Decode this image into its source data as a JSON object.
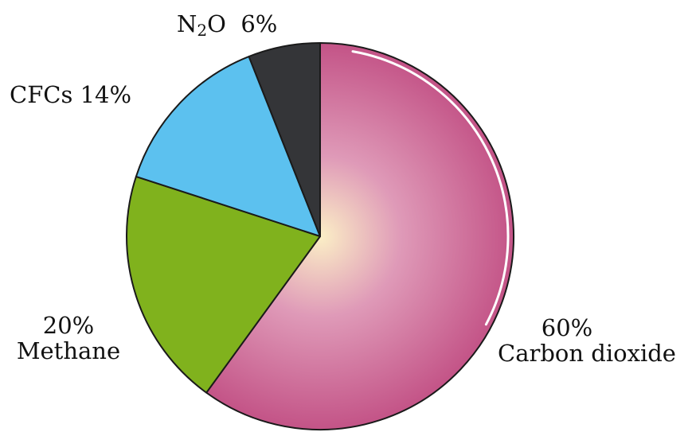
{
  "chart_data": {
    "type": "pie",
    "title": "",
    "start_angle_deg": 0,
    "direction": "clockwise",
    "slices": [
      {
        "name": "Carbon dioxide",
        "value": 60,
        "percent_label": "60%",
        "color": "#c45588",
        "center_color": "#fbefc6"
      },
      {
        "name": "Methane",
        "value": 20,
        "percent_label": "20%",
        "color": "#80b21d"
      },
      {
        "name": "CFCs",
        "value": 14,
        "percent_label": "14%",
        "color": "#5cc1ef"
      },
      {
        "name": "N2O",
        "value": 6,
        "percent_label": "6%",
        "color": "#343538",
        "name_main": "N",
        "name_sub": "2",
        "name_tail": "O"
      }
    ]
  }
}
